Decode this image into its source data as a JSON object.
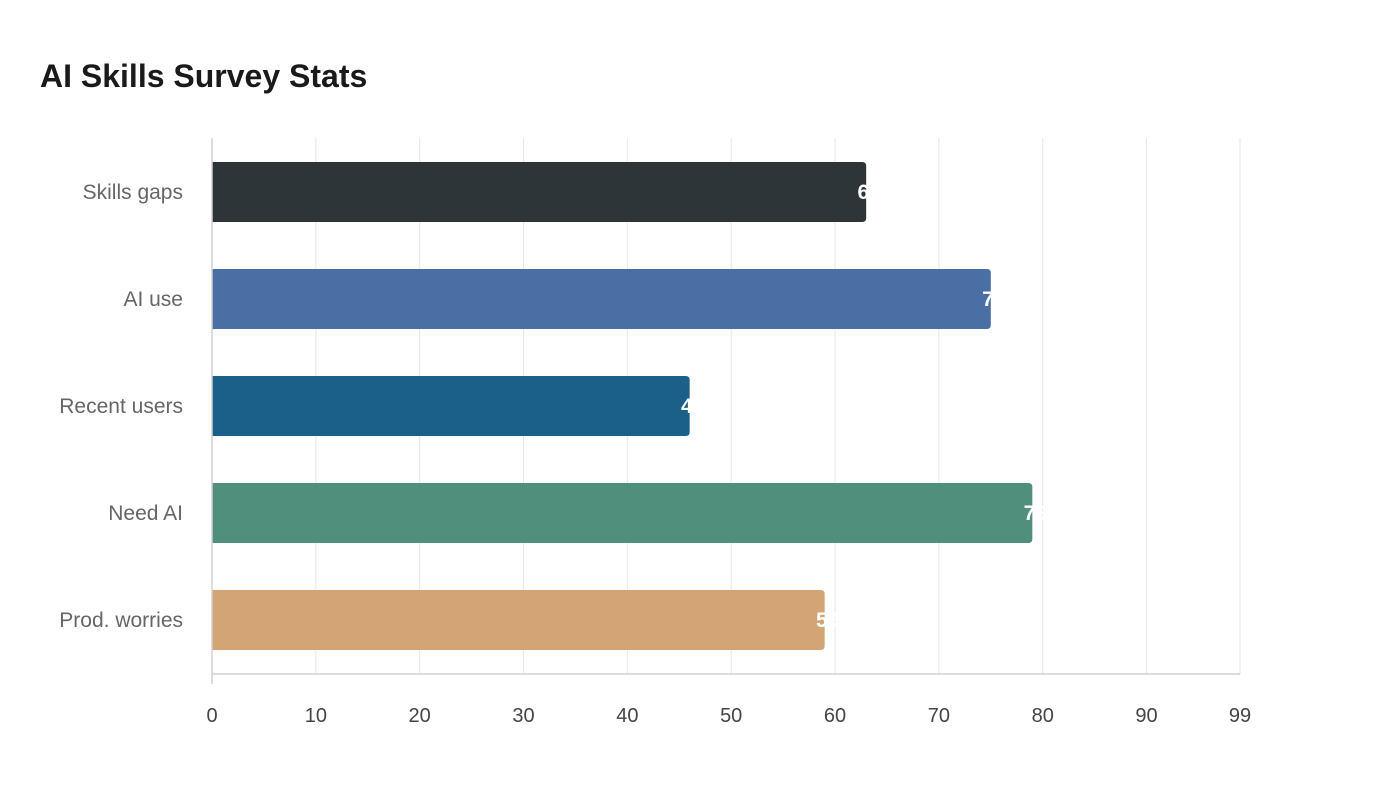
{
  "title": "AI Skills Survey Stats",
  "chart_data": {
    "type": "bar",
    "orientation": "horizontal",
    "title": "AI Skills Survey Stats",
    "xlabel": "",
    "ylabel": "",
    "categories": [
      "Skills gaps",
      "AI use",
      "Recent users",
      "Need AI",
      "Prod. worries"
    ],
    "values": [
      63,
      75,
      46,
      79,
      59
    ],
    "colors": [
      "#2e3538",
      "#4a6fa5",
      "#1a6089",
      "#4f8f7c",
      "#d4a574"
    ],
    "xlim": [
      0,
      99
    ],
    "xticks": [
      "0",
      "10",
      "20",
      "30",
      "40",
      "50",
      "60",
      "70",
      "80",
      "90",
      "99"
    ],
    "grid": true,
    "legend": "none"
  }
}
